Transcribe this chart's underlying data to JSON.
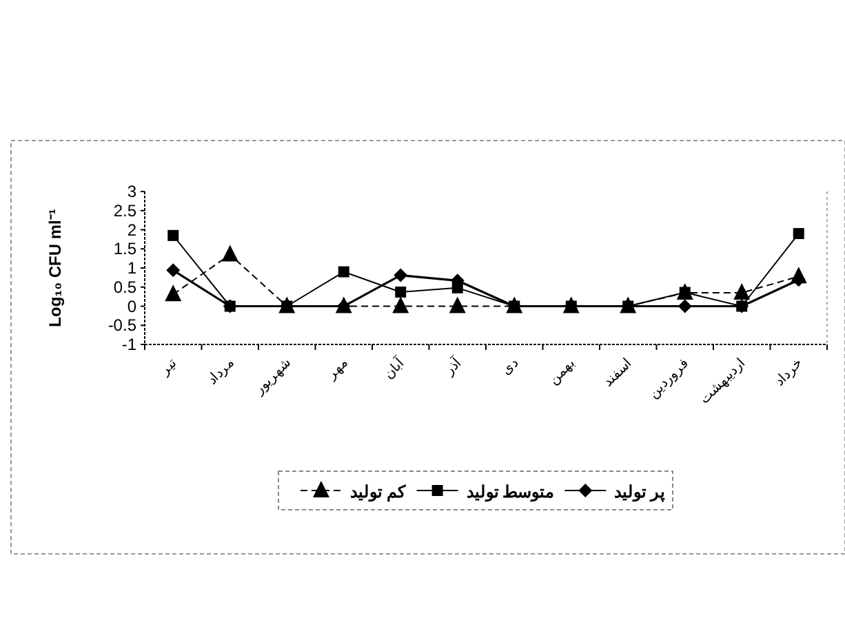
{
  "chart_data": {
    "type": "line",
    "ylabel": "Log₁₀ CFU ml⁻¹",
    "categories": [
      "تیر",
      "مرداد",
      "شهریور",
      "مهر",
      "آبان",
      "آذر",
      "دی",
      "بهمن",
      "اسفند",
      "فروردین",
      "اردیبهشت",
      "خرداد"
    ],
    "ylim": [
      -1,
      3
    ],
    "yticks": [
      -1,
      -0.5,
      0,
      0.5,
      1,
      1.5,
      2,
      2.5,
      3
    ],
    "legend": "bottom",
    "grid": false,
    "series": [
      {
        "name": "پر تولید",
        "color": "#000000",
        "marker": "diamond",
        "line_style": "solid",
        "values": [
          0.94,
          0,
          0,
          0,
          0.81,
          0.67,
          0,
          0,
          0,
          0,
          0,
          0.69
        ]
      },
      {
        "name": "متوسط تولید",
        "color": "#000000",
        "marker": "square",
        "line_style": "solid",
        "values": [
          1.85,
          0,
          0,
          0.9,
          0.37,
          0.48,
          0,
          0,
          0,
          0.36,
          0,
          1.9
        ]
      },
      {
        "name": "کم تولید",
        "color": "#000000",
        "marker": "triangle",
        "line_style": "dashed",
        "values": [
          0.31,
          1.35,
          0,
          0,
          0,
          0,
          0,
          0,
          0,
          0.35,
          0.35,
          0.78
        ]
      }
    ]
  }
}
